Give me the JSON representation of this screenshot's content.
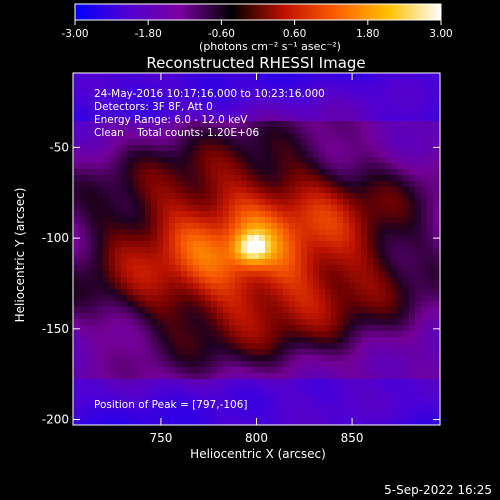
{
  "chart_data": {
    "type": "heatmap",
    "title": "Reconstructed RHESSI Image",
    "xlabel": "Heliocentric X (arcsec)",
    "ylabel": "Heliocentric Y (arcsec)",
    "xlim": [
      704,
      896
    ],
    "ylim": [
      -203,
      -9
    ],
    "x_ticks": [
      750,
      800,
      850
    ],
    "y_ticks": [
      -200,
      -150,
      -100,
      -50
    ],
    "colorbar": {
      "min": -3.0,
      "max": 3.0,
      "ticks": [
        -3.0,
        -1.8,
        -0.6,
        0.6,
        1.8,
        3.0
      ],
      "tick_labels": [
        "-3.00",
        "-1.80",
        "-0.60",
        "0.60",
        "1.80",
        "3.00"
      ],
      "colors": [
        "#0000ff",
        "#5000d0",
        "#7a00a0",
        "#000000",
        "#c01000",
        "#ff6000",
        "#ffc000",
        "#ffffff"
      ]
    },
    "units_label": "(photons cm⁻² s⁻¹ asec⁻²)",
    "peak": {
      "x": 797,
      "y": -106,
      "value": 3.0
    },
    "annotations": {
      "time": "24-May-2016 10:17:16.000 to 10:23:16.000",
      "detectors": "Detectors: 3F 8F, Att 0",
      "energy": "Energy Range: 6.0 - 12.0 keV",
      "clean": "Clean    Total counts: 1.20E+06",
      "peak_label": "Position of Peak = [797,-106]"
    },
    "timestamp": "5-Sep-2022 16:25"
  }
}
